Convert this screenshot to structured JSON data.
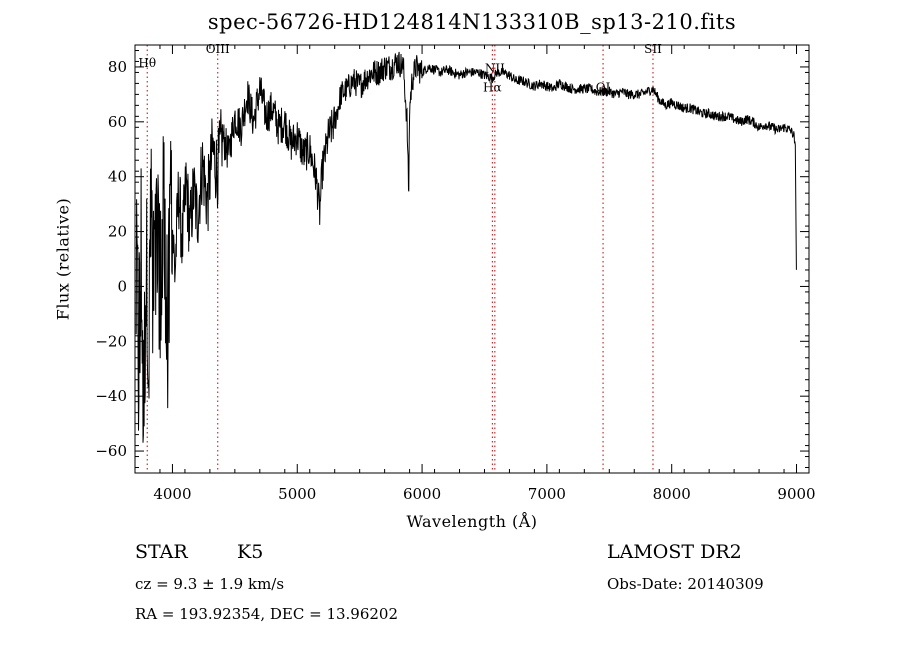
{
  "chart_data": {
    "type": "line",
    "title": "spec-56726-HD124814N133310B_sp13-210.fits",
    "xlabel": "Wavelength (Å)",
    "ylabel": "Flux (relative)",
    "xlim": [
      3700,
      9100
    ],
    "ylim": [
      -68,
      88
    ],
    "xticks": [
      4000,
      5000,
      6000,
      7000,
      8000,
      9000
    ],
    "yticks": [
      -60,
      -40,
      -20,
      0,
      20,
      40,
      60,
      80
    ],
    "line_color": "#000000",
    "marker_color": "#cc0000",
    "series": [
      {
        "x": [
          3710,
          3730,
          3750,
          3770,
          3790,
          3810,
          3830,
          3850,
          3870,
          3900,
          3930,
          3960,
          3990,
          4020,
          4050,
          4080,
          4110,
          4140,
          4170,
          4200,
          4240,
          4280,
          4320,
          4360,
          4400,
          4450,
          4500,
          4550,
          4600,
          4650,
          4700,
          4750,
          4800,
          4850,
          4900,
          4950,
          5000,
          5050,
          5100,
          5150,
          5180,
          5200,
          5250,
          5300,
          5350,
          5400,
          5450,
          5500,
          5550,
          5600,
          5650,
          5700,
          5750,
          5800,
          5850,
          5880,
          5893,
          5900,
          5920,
          5950,
          6000,
          6050,
          6100,
          6150,
          6200,
          6250,
          6300,
          6350,
          6400,
          6450,
          6500,
          6563,
          6600,
          6650,
          6700,
          6750,
          6800,
          6850,
          6900,
          6950,
          7000,
          7050,
          7100,
          7150,
          7200,
          7250,
          7300,
          7350,
          7400,
          7450,
          7500,
          7550,
          7600,
          7650,
          7700,
          7750,
          7800,
          7850,
          7900,
          7950,
          8000,
          8050,
          8100,
          8150,
          8200,
          8250,
          8300,
          8350,
          8400,
          8450,
          8500,
          8550,
          8600,
          8650,
          8700,
          8750,
          8800,
          8850,
          8900,
          8950,
          8980,
          8990,
          8995,
          9000
        ],
        "y": [
          10,
          -30,
          25,
          -50,
          15,
          -20,
          30,
          -10,
          20,
          0,
          25,
          -15,
          30,
          5,
          35,
          15,
          38,
          20,
          35,
          25,
          45,
          30,
          50,
          42,
          55,
          48,
          62,
          58,
          70,
          60,
          72,
          62,
          65,
          58,
          60,
          52,
          55,
          48,
          50,
          40,
          27,
          42,
          55,
          60,
          70,
          72,
          75,
          73,
          76,
          78,
          78,
          80,
          80,
          82,
          80,
          60,
          32,
          65,
          75,
          80,
          78,
          80,
          79,
          78,
          79,
          78,
          77,
          78,
          78,
          78,
          77,
          76,
          78,
          78,
          77,
          75,
          75,
          74,
          73,
          74,
          73,
          72,
          74,
          73,
          72,
          72,
          72,
          72,
          71,
          71,
          71,
          70,
          71,
          70,
          70,
          70,
          71,
          72,
          68,
          66,
          67,
          66,
          65,
          65,
          64,
          63,
          63,
          62,
          62,
          62,
          61,
          60,
          61,
          60,
          58,
          59,
          58,
          57,
          58,
          57,
          55,
          50,
          30,
          0
        ]
      }
    ],
    "line_markers": [
      {
        "x": 3798,
        "label": "Hθ",
        "label_y": 80
      },
      {
        "x": 4363,
        "label": "OIII",
        "label_y": 85
      },
      {
        "x": 6563,
        "label": "Hα",
        "label_y": 71
      },
      {
        "x": 6583,
        "label": "NII",
        "label_y": 78
      },
      {
        "x": 7450,
        "label": "OI",
        "label_y": 71
      },
      {
        "x": 7850,
        "label": "SII",
        "label_y": 85
      }
    ]
  },
  "info": {
    "object_class": "STAR",
    "subclass": "K5",
    "survey": "LAMOST DR2",
    "cz": "cz = 9.3 ± 1.9 km/s",
    "obs_date": "Obs-Date: 20140309",
    "coords": "RA = 193.92354, DEC =  13.96202"
  }
}
